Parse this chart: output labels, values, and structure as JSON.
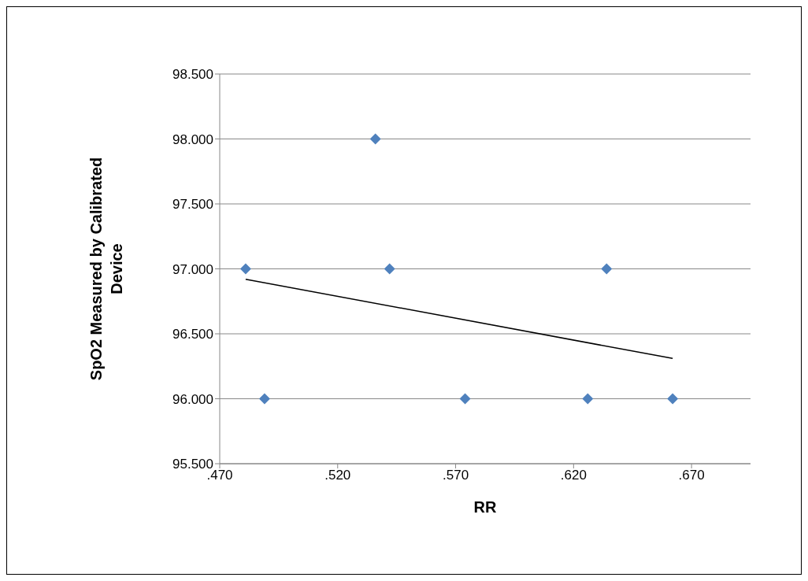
{
  "chart_data": {
    "type": "scatter",
    "xlabel": "RR",
    "ylabel": "SpO2 Measured by Calibrated Device",
    "xlim": [
      0.47,
      0.695
    ],
    "xticks": [
      {
        "value": 0.47,
        "label": ".470"
      },
      {
        "value": 0.52,
        "label": ".520"
      },
      {
        "value": 0.57,
        "label": ".570"
      },
      {
        "value": 0.62,
        "label": ".620"
      },
      {
        "value": 0.67,
        "label": ".670"
      }
    ],
    "ylim": [
      95.5,
      98.5
    ],
    "yticks": [
      {
        "value": 95.5,
        "label": "95.500"
      },
      {
        "value": 96,
        "label": "96.000"
      },
      {
        "value": 96.5,
        "label": "96.500"
      },
      {
        "value": 97,
        "label": "97.000"
      },
      {
        "value": 97.5,
        "label": "97.500"
      },
      {
        "value": 98,
        "label": "98.000"
      },
      {
        "value": 98.5,
        "label": "98.500"
      }
    ],
    "grid": "y",
    "marker": "diamond",
    "series": [
      {
        "color": "#4f81bd",
        "x": [
          0.481,
          0.489,
          0.536,
          0.542,
          0.574,
          0.626,
          0.634,
          0.662
        ],
        "values": [
          97,
          96,
          98,
          97,
          96,
          96,
          97,
          96
        ]
      },
      {
        "type": "line",
        "color": "#000000",
        "marker": "none",
        "x": [
          0.481,
          0.662
        ],
        "values": [
          96.92,
          96.31
        ]
      }
    ]
  }
}
